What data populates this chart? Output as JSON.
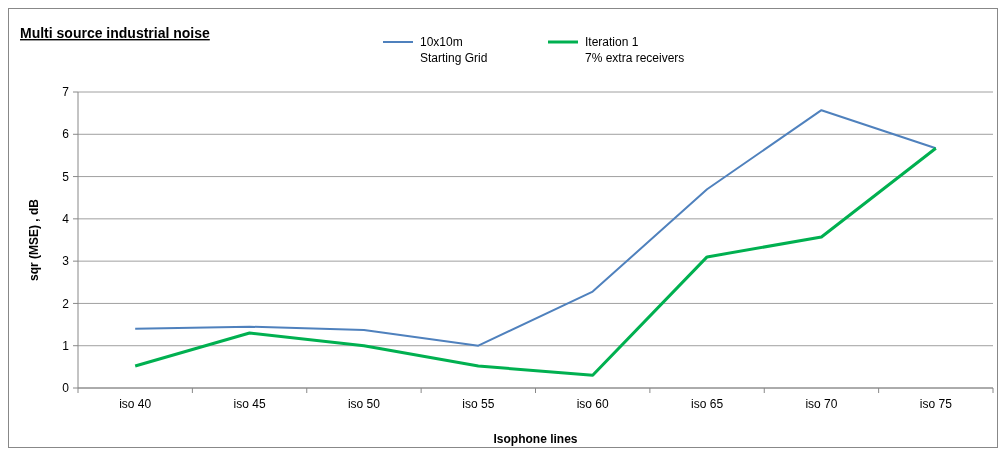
{
  "chart_data": {
    "type": "line",
    "title": "Multi source industrial noise",
    "xlabel": "Isophone lines",
    "ylabel": "sqr (MSE) , dB",
    "categories": [
      "iso 40",
      "iso 45",
      "iso 50",
      "iso 55",
      "iso 60",
      "iso 65",
      "iso 70",
      "iso 75"
    ],
    "series": [
      {
        "name": "10x10m\nStarting Grid",
        "color": "#4f81bd",
        "values": [
          1.4,
          1.45,
          1.37,
          1.0,
          2.28,
          4.7,
          6.57,
          5.67
        ]
      },
      {
        "name": "Iteration 1\n7% extra receivers",
        "color": "#00b050",
        "values": [
          0.52,
          1.3,
          1.0,
          0.52,
          0.3,
          3.1,
          3.57,
          5.67
        ]
      }
    ],
    "ylim": [
      0,
      7
    ],
    "yticks": [
      0,
      1,
      2,
      3,
      4,
      5,
      6,
      7
    ],
    "grid": "y",
    "legend": "top",
    "marker": "none",
    "line_style": "solid"
  }
}
